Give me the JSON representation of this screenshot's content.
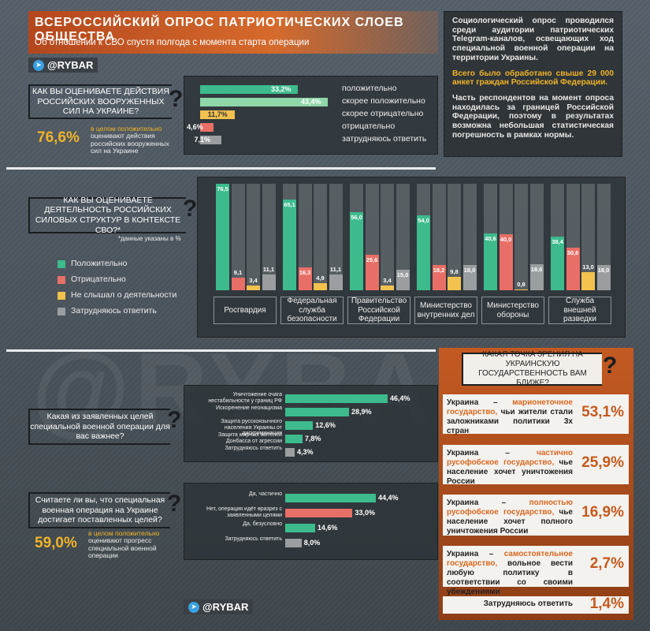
{
  "header": {
    "title": "Всероссийский опрос патриотических слоев общества",
    "subtitle": "Об отношении к СВО спустя полгода с момента старта операции"
  },
  "brand": {
    "name": "@RYBAR"
  },
  "watermark": "@RYBAR",
  "info": {
    "p1": "Социологический опрос проводился среди аудитории патриотических Telegram-каналов, освещающих ход специальной военной операции на территории Украины.",
    "p2": "Всего было обработано свыше 29 000 анкет граждан Российской Федерации.",
    "p3": "Часть респондентов на момент опроса находилась за границей Российской Федерации, поэтому в результатах возможна небольшая статистическая погрешность в рамках нормы."
  },
  "colors": {
    "positive": "#3dbb8d",
    "light_positive": "#8fd6a8",
    "negative": "#e86f67",
    "unaware": "#f2c14e",
    "undecided": "#9a9ea1",
    "accent": "#f0b429"
  },
  "q1": {
    "question": "Как вы оцениваете действия российских вооруженных сил на Украине?",
    "total": "76,6%",
    "note_a": "в целом положительно",
    "note_b": "оценивают действия российских вооруженных сил на Украине"
  },
  "q2": {
    "question": "Как вы оцениваете деятельность российских силовых структур в контексте СВО?*",
    "footnote": "*данные указаны в %"
  },
  "q3": {
    "question": "Какая из заявленных целей специальной военной операции для вас важнее?"
  },
  "q4": {
    "question": "Считаете ли вы, что специальная военная операция на Украине достигает поставленных целей?",
    "total": "59,0%",
    "note_a": "в целом положительно",
    "note_b": "оценивают прогресс специальной военной операции"
  },
  "q5": {
    "question": "Какая точка зрения на украинскую государственность вам ближе?"
  },
  "chart_data": [
    {
      "type": "bar",
      "categories": [
        "положительно",
        "скорее положительно",
        "скорее отрицательно",
        "отрицательно",
        "затрудняюсь ответить"
      ],
      "values": [
        33.2,
        43.4,
        11.7,
        4.6,
        7.1
      ],
      "labels": [
        "33,2%",
        "43,4%",
        "11,7%",
        "4,6%",
        "7,1%"
      ],
      "colors": [
        "#3dbb8d",
        "#8fd6a8",
        "#f2c14e",
        "#e86f67",
        "#9a9ea1"
      ]
    },
    {
      "type": "bar",
      "categories": [
        "Росгвардия",
        "Федеральная служба безопасности",
        "Правительство Российской Федерации",
        "Министерство внутренних дел",
        "Министерство обороны",
        "Служба внешней разведки"
      ],
      "series": [
        {
          "name": "Положительно",
          "values": [
            76.5,
            65.1,
            56.0,
            54.0,
            40.6,
            38.4
          ],
          "labels": [
            "76,5",
            "65,1",
            "56,0",
            "54,0",
            "40,6",
            "38,4"
          ],
          "color": "#3dbb8d"
        },
        {
          "name": "Отрицательно",
          "values": [
            9.1,
            16.3,
            25.6,
            18.2,
            40.0,
            30.6
          ],
          "labels": [
            "9,1",
            "16,3",
            "25,6",
            "18,2",
            "40,0",
            "30,6"
          ],
          "color": "#e86f67"
        },
        {
          "name": "Не слышал о деятельности",
          "values": [
            3.4,
            4.9,
            3.4,
            9.8,
            0.8,
            13.0
          ],
          "labels": [
            "3,4",
            "4,9",
            "3,4",
            "9,8",
            "0,8",
            "13,0"
          ],
          "color": "#f2c14e"
        },
        {
          "name": "Затрудняюсь ответить",
          "values": [
            11.1,
            11.1,
            15.0,
            18.0,
            18.6,
            18.0
          ],
          "labels": [
            "11,1",
            "11,1",
            "15,0",
            "18,0",
            "18,6",
            "18,0"
          ],
          "color": "#9a9ea1"
        }
      ],
      "ylim": [
        0,
        100
      ]
    },
    {
      "type": "bar",
      "categories": [
        "Уничтожение очага нестабильности у границ РФ",
        "Искоренение неонацизма",
        "Защита русскоязычного населения Украины от дискриминации",
        "Защита мирных жителей Донбасса от агрессии",
        "Затрудняюсь ответить"
      ],
      "values": [
        46.4,
        28.9,
        12.6,
        7.8,
        4.3
      ],
      "labels": [
        "46,4%",
        "28,9%",
        "12,6%",
        "7,8%",
        "4,3%"
      ],
      "colors": [
        "#3dbb8d",
        "#3dbb8d",
        "#3dbb8d",
        "#3dbb8d",
        "#9a9ea1"
      ]
    },
    {
      "type": "bar",
      "categories": [
        "Да, частично",
        "Нет, операция идёт вразрез с заявленными целями",
        "Да, безусловно",
        "Затрудняюсь ответить"
      ],
      "values": [
        44.4,
        33.0,
        14.6,
        8.0
      ],
      "labels": [
        "44,4%",
        "33,0%",
        "14,6%",
        "8,0%"
      ],
      "colors": [
        "#3dbb8d",
        "#e86f67",
        "#3dbb8d",
        "#9a9ea1"
      ]
    },
    {
      "type": "table",
      "rows": [
        {
          "a": "Украина – ",
          "b": "марионеточное государство,",
          "c": " чьи жители стали заложниками политики 3х стран",
          "value": "53,1%"
        },
        {
          "a": "Украина – ",
          "b": "частично русофобское государство,",
          "c": " чье население хочет уничтожения России",
          "value": "25,9%"
        },
        {
          "a": "Украина – ",
          "b": "полностью русофобское государство,",
          "c": " чье население хочет полного уничтожения России",
          "value": "16,9%"
        },
        {
          "a": "Украина – ",
          "b": "самостоятельное государство,",
          "c": " вольное вести любую политику в соответствии со своими убеждениями",
          "value": "2,7%"
        },
        {
          "a": "",
          "b": "",
          "c": "Затрудняюсь ответить",
          "value": "1,4%"
        }
      ]
    }
  ]
}
